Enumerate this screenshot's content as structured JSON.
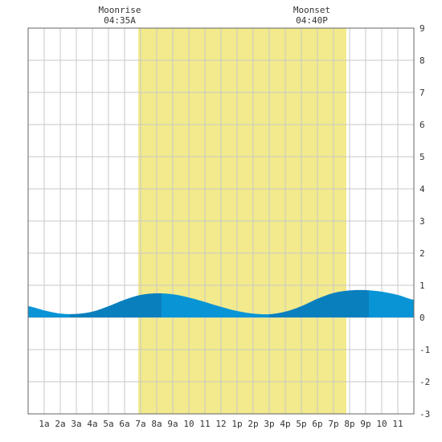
{
  "annotations": {
    "moonrise_label": "Moonrise",
    "moonrise_time": "04:35A",
    "moonset_label": "Moonset",
    "moonset_time": "04:40P"
  },
  "colors": {
    "daylight": "#f2ea8c",
    "tide_light": "#0994d6",
    "tide_dark": "#0a7fbd",
    "grid": "#c8c8c8",
    "border": "#666666",
    "background": "#ffffff"
  },
  "chart_data": {
    "type": "area",
    "title": "",
    "xlabel": "",
    "ylabel": "",
    "xlim": [
      0,
      24
    ],
    "ylim": [
      -3,
      9
    ],
    "y_ticks": [
      9,
      8,
      7,
      6,
      5,
      4,
      3,
      2,
      1,
      0,
      -1,
      -2,
      -3
    ],
    "x_tick_labels": [
      "1a",
      "2a",
      "3a",
      "4a",
      "5a",
      "6a",
      "7a",
      "8a",
      "9a",
      "10",
      "11",
      "12",
      "1p",
      "2p",
      "3p",
      "4p",
      "5p",
      "6p",
      "7p",
      "8p",
      "9p",
      "10",
      "11"
    ],
    "daylight_hours": [
      6.85,
      19.8
    ],
    "tide_extremes": [
      {
        "hour": 2.6,
        "height": 0.1
      },
      {
        "hour": 8.3,
        "height": 0.75
      },
      {
        "hour": 15.0,
        "height": 0.1
      },
      {
        "hour": 21.2,
        "height": 0.85
      }
    ],
    "series": [
      {
        "x": [
          0,
          1,
          2,
          3,
          4,
          5,
          6,
          7,
          8,
          9,
          10,
          11,
          12,
          13,
          14,
          15,
          16,
          17,
          18,
          19,
          20,
          21,
          22,
          23,
          24
        ],
        "y": [
          0.35,
          0.22,
          0.12,
          0.11,
          0.18,
          0.35,
          0.55,
          0.7,
          0.75,
          0.72,
          0.62,
          0.48,
          0.33,
          0.2,
          0.12,
          0.1,
          0.18,
          0.35,
          0.58,
          0.76,
          0.84,
          0.85,
          0.8,
          0.7,
          0.55
        ]
      }
    ]
  }
}
